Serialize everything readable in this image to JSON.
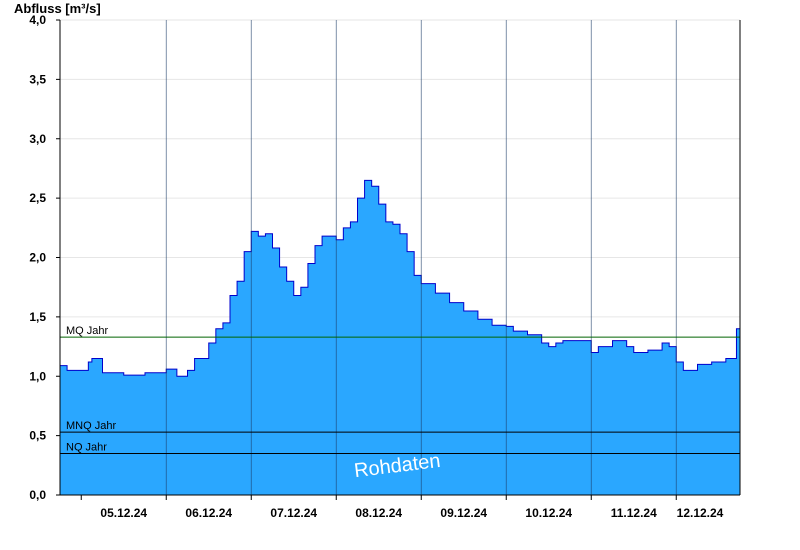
{
  "chart_data": {
    "type": "area",
    "ylabel": "Abfluss [m³/s]",
    "ylim": [
      0,
      4.0
    ],
    "yticks": [
      "0,0",
      "0,5",
      "1,0",
      "1,5",
      "2,0",
      "2,5",
      "3,0",
      "3,5",
      "4,0"
    ],
    "x_start": "2024-12-04T18:00",
    "x_end": "2024-12-12T18:00",
    "day_boundaries": [
      "2024-12-05T00:00",
      "2024-12-06T00:00",
      "2024-12-07T00:00",
      "2024-12-08T00:00",
      "2024-12-09T00:00",
      "2024-12-10T00:00",
      "2024-12-11T00:00",
      "2024-12-12T00:00"
    ],
    "xtick_labels": [
      "05.12.24",
      "06.12.24",
      "07.12.24",
      "08.12.24",
      "09.12.24",
      "10.12.24",
      "11.12.24",
      "12.12.24"
    ],
    "grid": true,
    "series": [
      {
        "color": "#2aa7ff",
        "line_color": "#0000cc",
        "points": [
          [
            "2024-12-04T18:00",
            1.09
          ],
          [
            "2024-12-04T20:00",
            1.05
          ],
          [
            "2024-12-05T00:00",
            1.05
          ],
          [
            "2024-12-05T02:00",
            1.12
          ],
          [
            "2024-12-05T03:00",
            1.15
          ],
          [
            "2024-12-05T06:00",
            1.03
          ],
          [
            "2024-12-05T12:00",
            1.01
          ],
          [
            "2024-12-05T18:00",
            1.03
          ],
          [
            "2024-12-06T00:00",
            1.06
          ],
          [
            "2024-12-06T03:00",
            1.0
          ],
          [
            "2024-12-06T06:00",
            1.05
          ],
          [
            "2024-12-06T08:00",
            1.15
          ],
          [
            "2024-12-06T12:00",
            1.28
          ],
          [
            "2024-12-06T14:00",
            1.4
          ],
          [
            "2024-12-06T16:00",
            1.45
          ],
          [
            "2024-12-06T18:00",
            1.68
          ],
          [
            "2024-12-06T20:00",
            1.8
          ],
          [
            "2024-12-06T22:00",
            2.05
          ],
          [
            "2024-12-07T00:00",
            2.22
          ],
          [
            "2024-12-07T02:00",
            2.18
          ],
          [
            "2024-12-07T04:00",
            2.2
          ],
          [
            "2024-12-07T06:00",
            2.08
          ],
          [
            "2024-12-07T08:00",
            1.92
          ],
          [
            "2024-12-07T10:00",
            1.8
          ],
          [
            "2024-12-07T12:00",
            1.68
          ],
          [
            "2024-12-07T14:00",
            1.75
          ],
          [
            "2024-12-07T16:00",
            1.95
          ],
          [
            "2024-12-07T18:00",
            2.1
          ],
          [
            "2024-12-07T20:00",
            2.18
          ],
          [
            "2024-12-08T00:00",
            2.15
          ],
          [
            "2024-12-08T02:00",
            2.25
          ],
          [
            "2024-12-08T04:00",
            2.3
          ],
          [
            "2024-12-08T06:00",
            2.5
          ],
          [
            "2024-12-08T08:00",
            2.65
          ],
          [
            "2024-12-08T10:00",
            2.6
          ],
          [
            "2024-12-08T12:00",
            2.45
          ],
          [
            "2024-12-08T14:00",
            2.3
          ],
          [
            "2024-12-08T16:00",
            2.28
          ],
          [
            "2024-12-08T18:00",
            2.2
          ],
          [
            "2024-12-08T20:00",
            2.05
          ],
          [
            "2024-12-08T22:00",
            1.85
          ],
          [
            "2024-12-09T00:00",
            1.78
          ],
          [
            "2024-12-09T04:00",
            1.7
          ],
          [
            "2024-12-09T08:00",
            1.62
          ],
          [
            "2024-12-09T12:00",
            1.55
          ],
          [
            "2024-12-09T16:00",
            1.48
          ],
          [
            "2024-12-09T20:00",
            1.43
          ],
          [
            "2024-12-10T00:00",
            1.42
          ],
          [
            "2024-12-10T02:00",
            1.38
          ],
          [
            "2024-12-10T06:00",
            1.35
          ],
          [
            "2024-12-10T10:00",
            1.28
          ],
          [
            "2024-12-10T12:00",
            1.25
          ],
          [
            "2024-12-10T14:00",
            1.28
          ],
          [
            "2024-12-10T16:00",
            1.3
          ],
          [
            "2024-12-10T20:00",
            1.3
          ],
          [
            "2024-12-11T00:00",
            1.2
          ],
          [
            "2024-12-11T02:00",
            1.25
          ],
          [
            "2024-12-11T06:00",
            1.3
          ],
          [
            "2024-12-11T10:00",
            1.25
          ],
          [
            "2024-12-11T12:00",
            1.2
          ],
          [
            "2024-12-11T16:00",
            1.22
          ],
          [
            "2024-12-11T20:00",
            1.28
          ],
          [
            "2024-12-11T22:00",
            1.25
          ],
          [
            "2024-12-12T00:00",
            1.12
          ],
          [
            "2024-12-12T02:00",
            1.05
          ],
          [
            "2024-12-12T04:00",
            1.05
          ],
          [
            "2024-12-12T06:00",
            1.1
          ],
          [
            "2024-12-12T10:00",
            1.12
          ],
          [
            "2024-12-12T14:00",
            1.15
          ],
          [
            "2024-12-12T16:00",
            1.15
          ],
          [
            "2024-12-12T17:00",
            1.4
          ],
          [
            "2024-12-12T18:00",
            1.45
          ]
        ]
      }
    ],
    "reference_lines": [
      {
        "label": "MQ Jahr",
        "value": 1.33,
        "color": "#006400"
      },
      {
        "label": "MNQ Jahr",
        "value": 0.53,
        "color": "#000000"
      },
      {
        "label": "NQ Jahr",
        "value": 0.35,
        "color": "#000000"
      }
    ],
    "watermark": "Rohdaten"
  }
}
